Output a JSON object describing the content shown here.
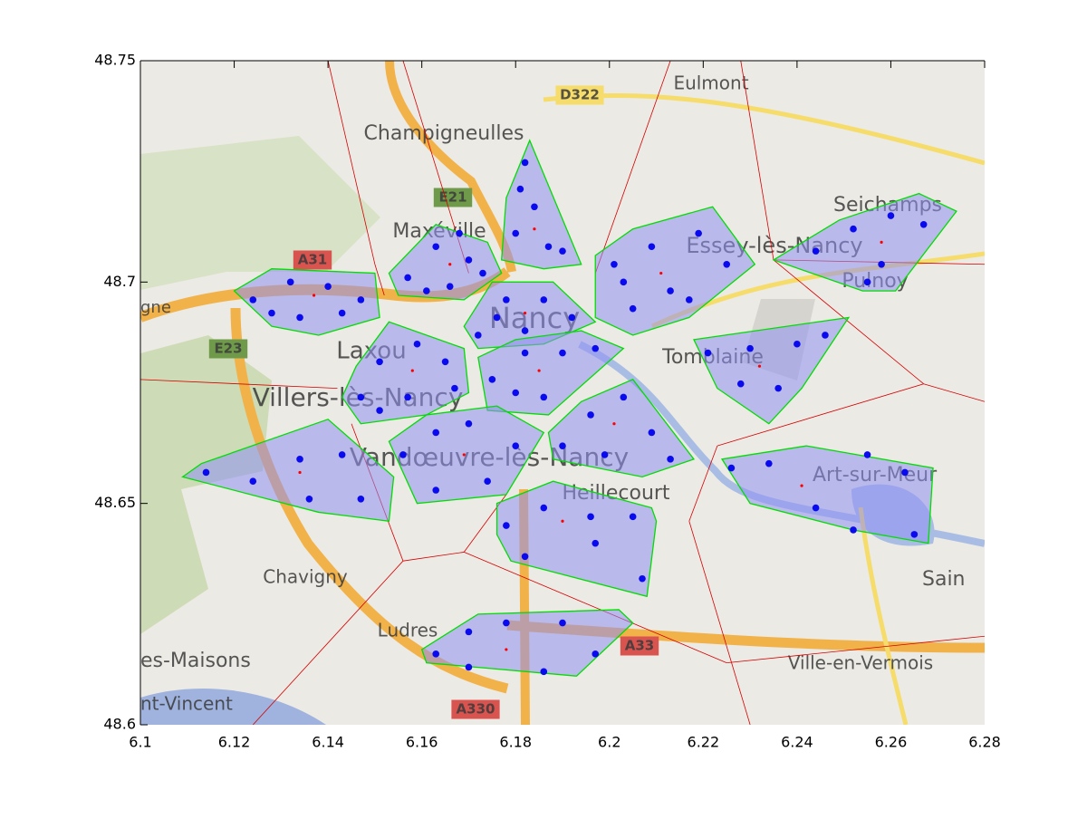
{
  "chart_data": {
    "type": "scatter",
    "xlim": [
      6.1,
      6.28
    ],
    "ylim": [
      48.6,
      48.75
    ],
    "xticks": [
      6.1,
      6.12,
      6.14,
      6.16,
      6.18,
      6.2,
      6.22,
      6.24,
      6.26,
      6.28
    ],
    "yticks": [
      48.6,
      48.65,
      48.7,
      48.75
    ],
    "colors": {
      "points": "#0a0aee",
      "hull_edge": "#00dd00",
      "hull_fill": "#8f8ff2",
      "center": "#ff0000",
      "voronoi": "#d40000"
    },
    "map_labels": [
      "Champigneulles",
      "Eulmont",
      "D322",
      "E21",
      "A31",
      "Maxéville",
      "Essey-lès-Nancy",
      "Seichamps",
      "Pulnoy",
      "Nancy",
      "Laxou",
      "Tomblaine",
      "Villers-lès-Nancy",
      "E23",
      "Vandœuvre-lès-Nancy",
      "Heillecourt",
      "Art-sur-Meur",
      "Chavigny",
      "Sain",
      "Ludres",
      "A33",
      "Ville-en-Vermois",
      "es-Maisons",
      "nt-Vincent",
      "gne",
      "A330"
    ],
    "voronoi_edges": [
      [
        6.14,
        48.75,
        6.15,
        48.704
      ],
      [
        6.15,
        48.704,
        6.152,
        48.697
      ],
      [
        6.156,
        48.75,
        6.17,
        48.702
      ],
      [
        6.213,
        48.75,
        6.197,
        48.702
      ],
      [
        6.228,
        48.75,
        6.235,
        48.705
      ],
      [
        6.235,
        48.705,
        6.28,
        48.704
      ],
      [
        6.235,
        48.705,
        6.267,
        48.677
      ],
      [
        6.267,
        48.677,
        6.28,
        48.673
      ],
      [
        6.267,
        48.677,
        6.223,
        48.663
      ],
      [
        6.223,
        48.663,
        6.217,
        48.646
      ],
      [
        6.217,
        48.646,
        6.23,
        48.6
      ],
      [
        6.1,
        48.678,
        6.142,
        48.676
      ],
      [
        6.145,
        48.668,
        6.156,
        48.637
      ],
      [
        6.156,
        48.637,
        6.169,
        48.639
      ],
      [
        6.156,
        48.637,
        6.124,
        48.6
      ],
      [
        6.169,
        48.639,
        6.225,
        48.614
      ],
      [
        6.225,
        48.614,
        6.28,
        48.62
      ],
      [
        6.169,
        48.639,
        6.178,
        48.652
      ]
    ],
    "clusters": [
      {
        "hull_x": [
          6.12,
          6.128,
          6.15,
          6.151,
          6.138,
          6.128
        ],
        "hull_y": [
          48.698,
          48.703,
          48.702,
          48.692,
          48.688,
          48.69
        ],
        "center": [
          6.137,
          48.697
        ],
        "x": [
          6.124,
          6.132,
          6.14,
          6.147,
          6.134,
          6.143,
          6.128
        ],
        "y": [
          48.696,
          48.7,
          48.699,
          48.696,
          48.692,
          48.693,
          48.693
        ]
      },
      {
        "hull_x": [
          6.153,
          6.163,
          6.174,
          6.177,
          6.169,
          6.155
        ],
        "hull_y": [
          48.702,
          48.713,
          48.709,
          48.702,
          48.696,
          48.697
        ],
        "center": [
          6.166,
          48.704
        ],
        "x": [
          6.157,
          6.163,
          6.17,
          6.173,
          6.166,
          6.161,
          6.168
        ],
        "y": [
          48.701,
          48.708,
          48.705,
          48.702,
          48.699,
          48.698,
          48.711
        ]
      },
      {
        "hull_x": [
          6.183,
          6.194,
          6.186,
          6.177,
          6.178
        ],
        "hull_y": [
          48.732,
          48.704,
          48.703,
          48.705,
          48.719
        ],
        "center": [
          6.184,
          48.712
        ],
        "x": [
          6.182,
          6.184,
          6.187,
          6.18,
          6.19,
          6.181
        ],
        "y": [
          48.727,
          48.717,
          48.708,
          48.711,
          48.707,
          48.721
        ]
      },
      {
        "hull_x": [
          6.197,
          6.205,
          6.222,
          6.231,
          6.217,
          6.205,
          6.197
        ],
        "hull_y": [
          48.706,
          48.712,
          48.717,
          48.704,
          48.692,
          48.688,
          48.692
        ],
        "center": [
          6.211,
          48.702
        ],
        "x": [
          6.201,
          6.209,
          6.219,
          6.225,
          6.213,
          6.205,
          6.217,
          6.203
        ],
        "y": [
          48.704,
          48.708,
          48.711,
          48.704,
          48.698,
          48.694,
          48.696,
          48.7
        ]
      },
      {
        "hull_x": [
          6.235,
          6.249,
          6.266,
          6.274,
          6.261,
          6.254
        ],
        "hull_y": [
          48.705,
          48.714,
          48.72,
          48.716,
          48.698,
          48.698
        ],
        "center": [
          6.258,
          48.709
        ],
        "x": [
          6.244,
          6.252,
          6.26,
          6.267,
          6.258,
          6.255
        ],
        "y": [
          48.707,
          48.712,
          48.715,
          48.713,
          48.704,
          48.7
        ]
      },
      {
        "hull_x": [
          6.169,
          6.175,
          6.188,
          6.197,
          6.186,
          6.172
        ],
        "hull_y": [
          48.69,
          48.7,
          48.7,
          48.691,
          48.686,
          48.685
        ],
        "center": [
          6.182,
          48.693
        ],
        "x": [
          6.172,
          6.178,
          6.186,
          6.192,
          6.182,
          6.176
        ],
        "y": [
          48.688,
          48.696,
          48.696,
          48.692,
          48.689,
          48.692
        ]
      },
      {
        "hull_x": [
          6.143,
          6.146,
          6.153,
          6.169,
          6.17,
          6.161,
          6.147
        ],
        "hull_y": [
          48.674,
          48.681,
          48.691,
          48.685,
          48.675,
          48.67,
          48.668
        ],
        "center": [
          6.158,
          48.68
        ],
        "x": [
          6.147,
          6.151,
          6.159,
          6.165,
          6.167,
          6.157,
          6.151
        ],
        "y": [
          48.674,
          48.682,
          48.686,
          48.682,
          48.676,
          48.674,
          48.671
        ]
      },
      {
        "hull_x": [
          6.172,
          6.18,
          6.194,
          6.203,
          6.187,
          6.174
        ],
        "hull_y": [
          48.683,
          48.687,
          48.689,
          48.685,
          48.67,
          48.671
        ],
        "center": [
          6.185,
          48.68
        ],
        "x": [
          6.175,
          6.182,
          6.19,
          6.197,
          6.186,
          6.18
        ],
        "y": [
          48.678,
          48.684,
          48.684,
          48.685,
          48.674,
          48.675
        ]
      },
      {
        "hull_x": [
          6.218,
          6.251,
          6.241,
          6.234,
          6.223
        ],
        "hull_y": [
          48.687,
          48.692,
          48.676,
          48.668,
          48.676
        ],
        "center": [
          6.232,
          48.681
        ],
        "x": [
          6.221,
          6.23,
          6.24,
          6.246,
          6.236,
          6.228
        ],
        "y": [
          48.684,
          48.685,
          48.686,
          48.688,
          48.676,
          48.677
        ]
      },
      {
        "hull_x": [
          6.109,
          6.113,
          6.14,
          6.154,
          6.153,
          6.138
        ],
        "hull_y": [
          48.656,
          48.659,
          48.669,
          48.656,
          48.646,
          48.648
        ],
        "center": [
          6.134,
          48.657
        ],
        "x": [
          6.114,
          6.124,
          6.134,
          6.143,
          6.147,
          6.136
        ],
        "y": [
          48.657,
          48.655,
          48.66,
          48.661,
          48.651,
          48.651
        ]
      },
      {
        "hull_x": [
          6.153,
          6.161,
          6.176,
          6.186,
          6.178,
          6.159
        ],
        "hull_y": [
          48.664,
          48.67,
          48.672,
          48.666,
          48.652,
          48.65
        ],
        "center": [
          6.169,
          48.661
        ],
        "x": [
          6.156,
          6.163,
          6.17,
          6.18,
          6.174,
          6.163
        ],
        "y": [
          48.661,
          48.666,
          48.668,
          48.663,
          48.655,
          48.653
        ]
      },
      {
        "hull_x": [
          6.187,
          6.194,
          6.205,
          6.218,
          6.207,
          6.188
        ],
        "hull_y": [
          48.666,
          48.673,
          48.678,
          48.66,
          48.656,
          48.66
        ],
        "center": [
          6.201,
          48.668
        ],
        "x": [
          6.19,
          6.196,
          6.203,
          6.209,
          6.213,
          6.199
        ],
        "y": [
          48.663,
          48.67,
          48.674,
          48.666,
          48.66,
          48.661
        ]
      },
      {
        "hull_x": [
          6.224,
          6.242,
          6.269,
          6.268,
          6.252,
          6.23
        ],
        "hull_y": [
          48.66,
          48.663,
          48.658,
          48.641,
          48.644,
          48.65
        ],
        "center": [
          6.241,
          48.654
        ],
        "x": [
          6.226,
          6.234,
          6.255,
          6.263,
          6.265,
          6.244,
          6.252
        ],
        "y": [
          48.658,
          48.659,
          48.661,
          48.657,
          48.643,
          48.649,
          48.644
        ]
      },
      {
        "hull_x": [
          6.176,
          6.188,
          6.209,
          6.21,
          6.208,
          6.179,
          6.176
        ],
        "hull_y": [
          48.65,
          48.655,
          48.649,
          48.646,
          48.629,
          48.637,
          48.643
        ],
        "center": [
          6.19,
          48.646
        ],
        "x": [
          6.178,
          6.186,
          6.196,
          6.205,
          6.197,
          6.207,
          6.182
        ],
        "y": [
          48.645,
          48.649,
          48.647,
          48.647,
          48.641,
          48.633,
          48.638
        ]
      },
      {
        "hull_x": [
          6.16,
          6.172,
          6.202,
          6.205,
          6.193,
          6.161
        ],
        "hull_y": [
          48.617,
          48.625,
          48.626,
          48.623,
          48.611,
          48.614
        ],
        "center": [
          6.178,
          48.617
        ],
        "x": [
          6.163,
          6.17,
          6.178,
          6.19,
          6.197,
          6.186,
          6.17
        ],
        "y": [
          48.616,
          48.621,
          48.623,
          48.623,
          48.616,
          48.612,
          48.613
        ]
      }
    ]
  }
}
